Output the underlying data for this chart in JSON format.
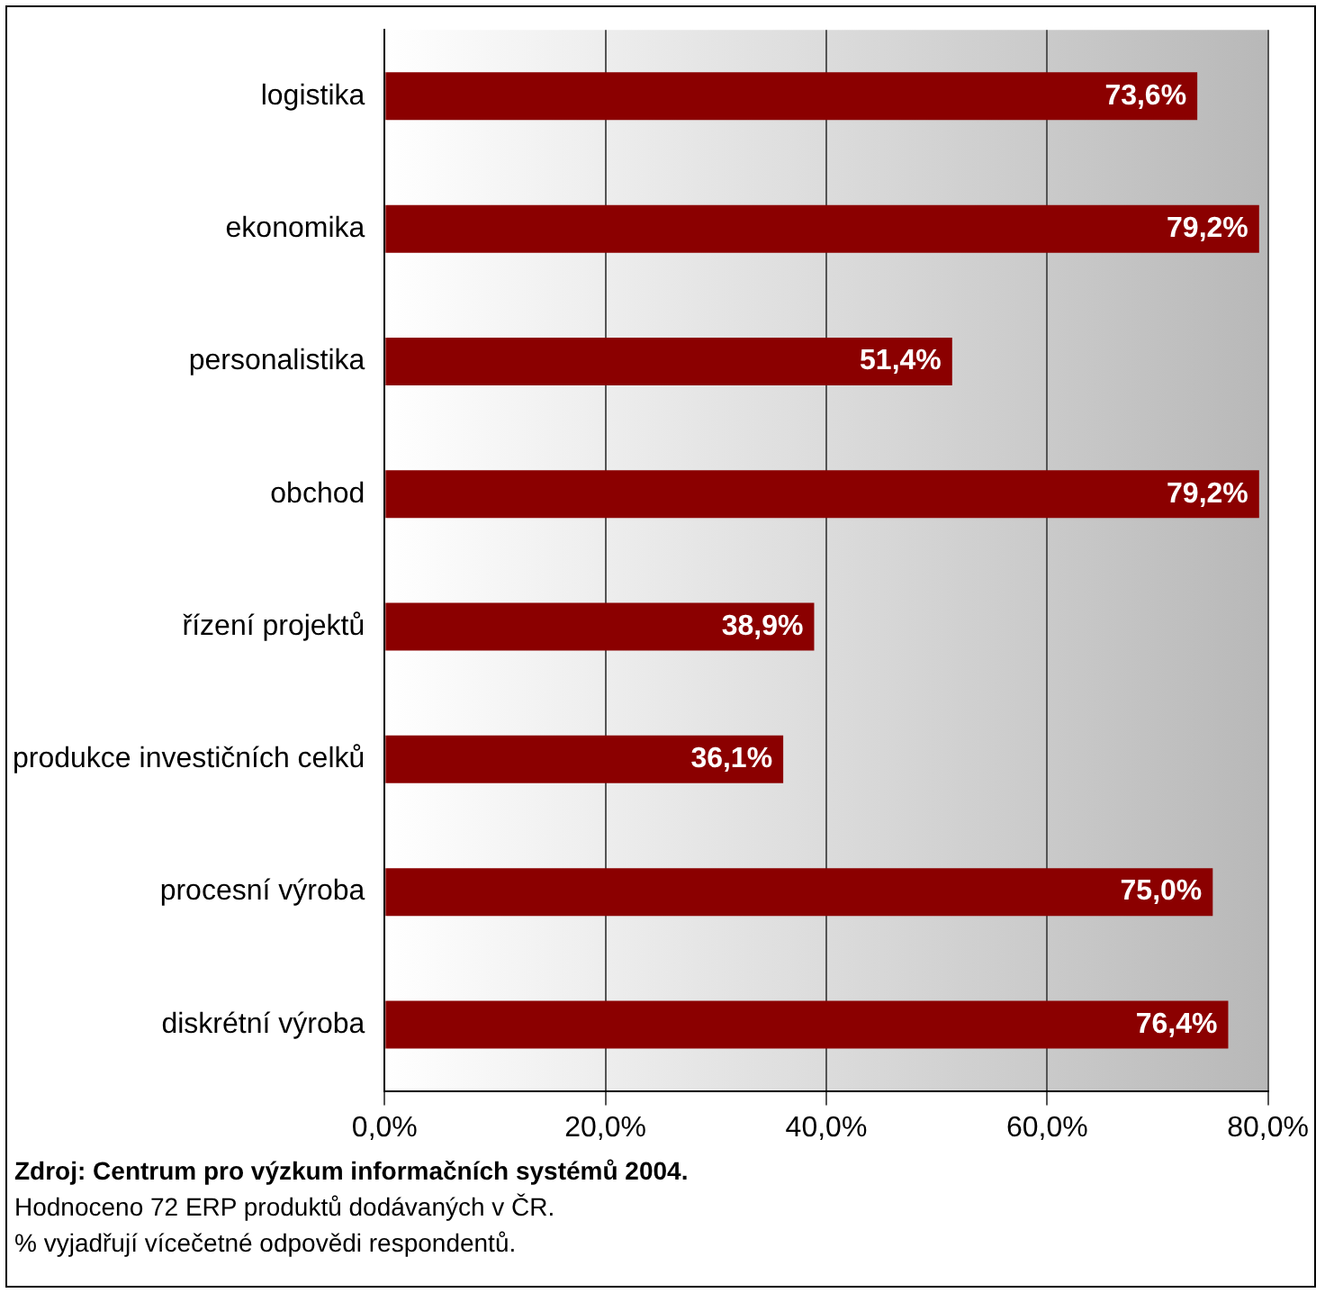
{
  "chart_data": {
    "type": "bar",
    "orientation": "horizontal",
    "categories": [
      "logistika",
      "ekonomika",
      "personalistika",
      "obchod",
      "řízení projektů",
      "produkce investičních celků",
      "procesní výroba",
      "diskrétní výroba"
    ],
    "values": [
      73.6,
      79.2,
      51.4,
      79.2,
      38.9,
      36.1,
      75.0,
      76.4
    ],
    "value_labels": [
      "73,6%",
      "79,2%",
      "51,4%",
      "79,2%",
      "38,9%",
      "36,1%",
      "75,0%",
      "76,4%"
    ],
    "color": "#8b0000",
    "xlim": [
      0,
      80
    ],
    "xticks": [
      {
        "value": 0,
        "label": "0,0%"
      },
      {
        "value": 20,
        "label": "20,0%"
      },
      {
        "value": 40,
        "label": "40,0%"
      },
      {
        "value": 60,
        "label": "60,0%"
      },
      {
        "value": 80,
        "label": "80,0%"
      }
    ],
    "grid": "x",
    "legend": false,
    "annotations": [
      "Zdroj: Centrum pro výzkum informačních systémů 2004.",
      "Hodnoceno 72 ERP produktů dodávaných v ČR.",
      "% vyjadřují vícečetné odpovědi respondentů."
    ]
  }
}
